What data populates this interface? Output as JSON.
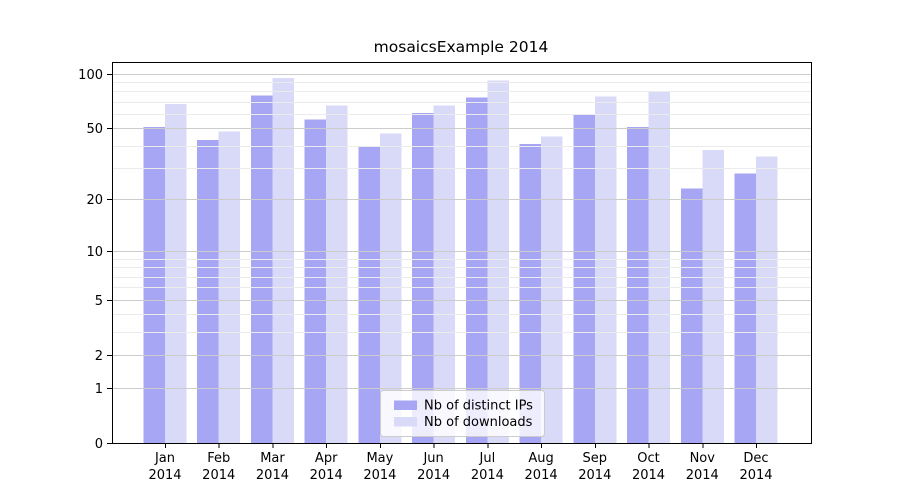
{
  "chart_data": {
    "type": "bar",
    "title": "mosaicsExample 2014",
    "categories": [
      "Jan",
      "Feb",
      "Mar",
      "Apr",
      "May",
      "Jun",
      "Jul",
      "Aug",
      "Sep",
      "Oct",
      "Nov",
      "Dec"
    ],
    "year_label": "2014",
    "series": [
      {
        "name": "Nb of distinct IPs",
        "color": "#a6a6f4",
        "values": [
          51,
          43,
          76,
          56,
          40,
          61,
          74,
          41,
          60,
          51,
          23,
          28
        ]
      },
      {
        "name": "Nb of downloads",
        "color": "#d9d9f8",
        "values": [
          68,
          48,
          95,
          67,
          47,
          67,
          92,
          45,
          75,
          80,
          38,
          35
        ]
      }
    ],
    "yscale": "log1p",
    "ylim": [
      0,
      116
    ],
    "y_major_ticks": [
      0,
      1,
      2,
      5,
      10,
      20,
      50,
      100
    ],
    "y_minor_ticks": [
      3,
      4,
      6,
      7,
      8,
      9,
      30,
      40,
      60,
      70,
      80,
      90
    ],
    "grid": true,
    "legend_position": "lower center",
    "colors": {
      "grid_major": "#cccccc",
      "grid_minor": "#ebebeb",
      "spine": "#000000",
      "legend_background": "rgba(255,255,255,0.8)",
      "legend_border": "#cccccc"
    }
  }
}
